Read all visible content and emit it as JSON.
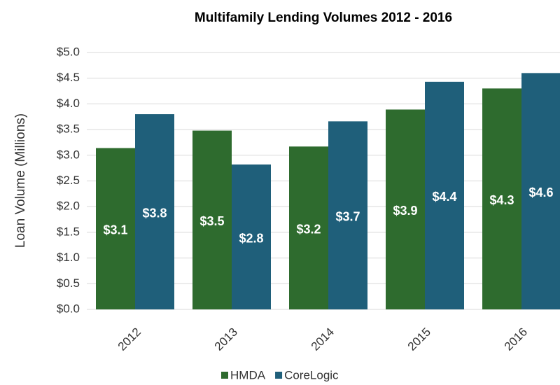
{
  "chart_data": {
    "type": "bar",
    "title": "Multifamily Lending Volumes 2012 - 2016",
    "y_label": "Loan Volume (Millions)",
    "categories": [
      "2012",
      "2013",
      "2014",
      "2015",
      "2016"
    ],
    "series": [
      {
        "name": "HMDA",
        "color": "#2e6b2e",
        "values": [
          3.14,
          3.48,
          3.17,
          3.89,
          4.3
        ],
        "value_labels": [
          "$3.1",
          "$3.5",
          "$3.2",
          "$3.9",
          "$4.3"
        ]
      },
      {
        "name": "CoreLogic",
        "color": "#1f5f7a",
        "values": [
          3.8,
          2.82,
          3.66,
          4.43,
          4.6
        ],
        "value_labels": [
          "$3.8",
          "$2.8",
          "$3.7",
          "$4.4",
          "$4.6"
        ]
      }
    ],
    "ylim": [
      0,
      5
    ],
    "yticks": [
      {
        "value": 0,
        "label": "$0.0"
      },
      {
        "value": 0.5,
        "label": "$0.5"
      },
      {
        "value": 1,
        "label": "$1.0"
      },
      {
        "value": 1.5,
        "label": "$1.5"
      },
      {
        "value": 2,
        "label": "$2.0"
      },
      {
        "value": 2.5,
        "label": "$2.5"
      },
      {
        "value": 3,
        "label": "$3.0"
      },
      {
        "value": 3.5,
        "label": "$3.5"
      },
      {
        "value": 4,
        "label": "$4.0"
      },
      {
        "value": 4.5,
        "label": "$4.5"
      },
      {
        "value": 5,
        "label": "$5.0"
      }
    ],
    "grid": true,
    "legend": "bottom"
  }
}
